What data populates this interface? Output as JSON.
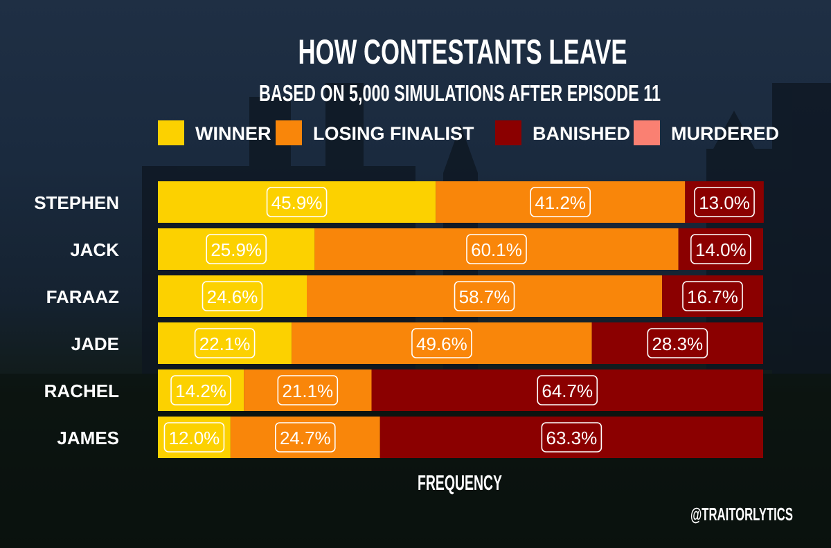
{
  "chart_data": {
    "type": "bar",
    "orientation": "horizontal",
    "stacked": true,
    "title": "HOW CONTESTANTS LEAVE",
    "subtitle": "BASED ON 5,000 SIMULATIONS AFTER EPISODE 11",
    "xlabel": "FREQUENCY",
    "ylabel": "",
    "xlim": [
      0,
      100
    ],
    "grid": false,
    "legend_position": "top",
    "categories": [
      "STEPHEN",
      "JACK",
      "FARAAZ",
      "JADE",
      "RACHEL",
      "JAMES"
    ],
    "series": [
      {
        "name": "WINNER",
        "color": "#fcd100",
        "values": [
          45.9,
          25.9,
          24.6,
          22.1,
          14.2,
          12.0
        ],
        "labels": [
          "45.9%",
          "25.9%",
          "24.6%",
          "22.1%",
          "14.2%",
          "12.0%"
        ]
      },
      {
        "name": "LOSING FINALIST",
        "color": "#f9860a",
        "values": [
          41.2,
          60.1,
          58.7,
          49.6,
          21.1,
          24.7
        ],
        "labels": [
          "41.2%",
          "60.1%",
          "58.7%",
          "49.6%",
          "21.1%",
          "24.7%"
        ]
      },
      {
        "name": "BANISHED",
        "color": "#8b0000",
        "values": [
          13.0,
          14.0,
          16.7,
          28.3,
          64.7,
          63.3
        ],
        "labels": [
          "13.0%",
          "14.0%",
          "16.7%",
          "28.3%",
          "64.7%",
          "63.3%"
        ]
      },
      {
        "name": "MURDERED",
        "color": "#fa8072",
        "values": [
          0,
          0,
          0,
          0,
          0,
          0
        ],
        "labels": [
          "",
          "",
          "",
          "",
          "",
          ""
        ]
      }
    ]
  },
  "credit": "@TRAITORLYTICS"
}
